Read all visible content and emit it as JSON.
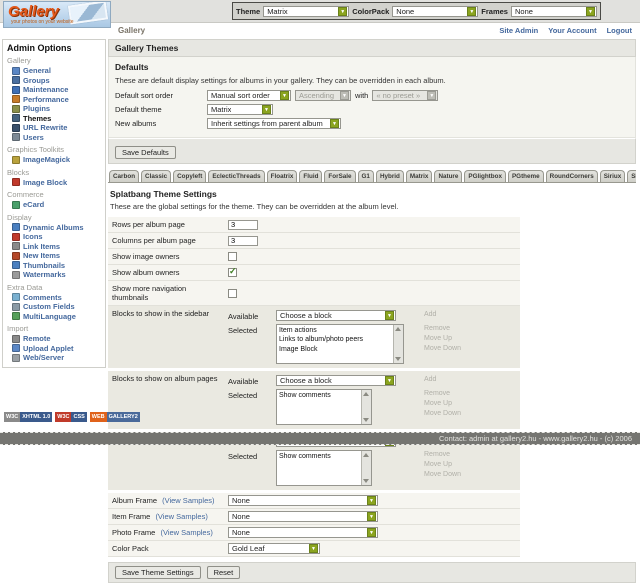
{
  "header": {
    "logo": {
      "title": "Gallery",
      "subtitle": "your photos on your website"
    },
    "theme_bar": {
      "theme_label": "Theme",
      "theme_value": "Matrix",
      "colorpack_label": "ColorPack",
      "colorpack_value": "None",
      "frames_label": "Frames",
      "frames_value": "None"
    },
    "breadcrumb": "Gallery",
    "links": [
      "Site Admin",
      "Your Account",
      "Logout"
    ]
  },
  "sidebar": {
    "title": "Admin Options",
    "sections": [
      {
        "label": "Gallery",
        "items": [
          {
            "label": "General",
            "icon": "general-icon",
            "color": "#5b87c5"
          },
          {
            "label": "Groups",
            "icon": "groups-icon",
            "color": "#4a6fa0"
          },
          {
            "label": "Maintenance",
            "icon": "maintenance-icon",
            "color": "#3f6fb5"
          },
          {
            "label": "Performance",
            "icon": "performance-icon",
            "color": "#c77b2a"
          },
          {
            "label": "Plugins",
            "icon": "plugins-icon",
            "color": "#8a8f4a"
          },
          {
            "label": "Themes",
            "icon": "themes-icon",
            "color": "#44627e",
            "active": true
          },
          {
            "label": "URL Rewrite",
            "icon": "url-rewrite-icon",
            "color": "#39506b"
          },
          {
            "label": "Users",
            "icon": "users-icon",
            "color": "#7d8a96"
          }
        ]
      },
      {
        "label": "Graphics Toolkits",
        "items": [
          {
            "label": "ImageMagick",
            "icon": "imagemagick-icon",
            "color": "#b9a23c"
          }
        ]
      },
      {
        "label": "Blocks",
        "items": [
          {
            "label": "Image Block",
            "icon": "image-block-icon",
            "color": "#c0392b"
          }
        ]
      },
      {
        "label": "Commerce",
        "items": [
          {
            "label": "eCard",
            "icon": "ecard-icon",
            "color": "#4aa06b"
          }
        ]
      },
      {
        "label": "Display",
        "items": [
          {
            "label": "Dynamic Albums",
            "icon": "dynamic-albums-icon",
            "color": "#4a7fc0"
          },
          {
            "label": "Icons",
            "icon": "icons-icon",
            "color": "#c0392b"
          },
          {
            "label": "Link Items",
            "icon": "link-items-icon",
            "color": "#8a8a8a"
          },
          {
            "label": "New Items",
            "icon": "new-items-icon",
            "color": "#b5482a"
          },
          {
            "label": "Thumbnails",
            "icon": "thumbnails-icon",
            "color": "#4a7fc0"
          },
          {
            "label": "Watermarks",
            "icon": "watermarks-icon",
            "color": "#9a9a9a"
          }
        ]
      },
      {
        "label": "Extra Data",
        "items": [
          {
            "label": "Comments",
            "icon": "comments-icon",
            "color": "#7ab0d0"
          },
          {
            "label": "Custom Fields",
            "icon": "custom-fields-icon",
            "color": "#8a9aa5"
          },
          {
            "label": "MultiLanguage",
            "icon": "multilanguage-icon",
            "color": "#56a05a"
          }
        ]
      },
      {
        "label": "Import",
        "items": [
          {
            "label": "Remote",
            "icon": "remote-icon",
            "color": "#8a8a8a"
          },
          {
            "label": "Upload Applet",
            "icon": "upload-applet-icon",
            "color": "#5b87c5"
          },
          {
            "label": "Web/Server",
            "icon": "web-server-icon",
            "color": "#9aa0a5"
          }
        ]
      }
    ]
  },
  "main": {
    "page_title": "Gallery Themes",
    "defaults": {
      "title": "Defaults",
      "description": "These are default display settings for albums in your gallery. They can be overridden in each album.",
      "sort_label": "Default sort order",
      "sort_value": "Manual sort order",
      "direction_value": "Ascending",
      "with_text": "with",
      "preset_value": "« no preset »",
      "theme_label": "Default theme",
      "theme_value": "Matrix",
      "new_albums_label": "New albums",
      "new_albums_value": "Inherit settings from parent album",
      "save_button": "Save Defaults"
    },
    "tabs": [
      {
        "label": "Carbon"
      },
      {
        "label": "Classic"
      },
      {
        "label": "Copyleft"
      },
      {
        "label": "EclecticThreads"
      },
      {
        "label": "Floatrix"
      },
      {
        "label": "Fluid"
      },
      {
        "label": "ForSale"
      },
      {
        "label": "G1"
      },
      {
        "label": "Hybrid"
      },
      {
        "label": "Matrix"
      },
      {
        "label": "Nature"
      },
      {
        "label": "PGlightbox"
      },
      {
        "label": "PGtheme"
      },
      {
        "label": "RoundCorners"
      },
      {
        "label": "Siriux"
      },
      {
        "label": "Slider"
      },
      {
        "label": "SplatBang",
        "active": true
      },
      {
        "label": "Tian"
      },
      {
        "label": "Tile"
      },
      {
        "label": "WordpressEmbedded"
      }
    ],
    "theme_settings": {
      "title": "Splatbang Theme Settings",
      "description": "These are the global settings for the theme. They can be overridden at the album level.",
      "rows_label": "Rows per album page",
      "rows_value": "3",
      "columns_label": "Columns per album page",
      "columns_value": "3",
      "show_image_owners_label": "Show image owners",
      "show_image_owners_checked": false,
      "show_album_owners_label": "Show album owners",
      "show_album_owners_checked": true,
      "show_more_nav_label": "Show more navigation thumbnails",
      "show_more_nav_checked": false,
      "available_label": "Available",
      "selected_label": "Selected",
      "choose_block": "Choose a block",
      "add_label": "Add",
      "remove_label": "Remove",
      "move_up_label": "Move Up",
      "move_down_label": "Move Down",
      "blocks": [
        {
          "label": "Blocks to show in the sidebar",
          "selected": [
            "Item actions",
            "Links to album/photo peers",
            "Image Block"
          ]
        },
        {
          "label": "Blocks to show on album pages",
          "selected": [
            "Show comments"
          ]
        },
        {
          "label": "Blocks to show on photo pages",
          "selected": [
            "Show comments"
          ]
        }
      ],
      "frames": [
        {
          "label": "Album Frame",
          "samples_link": "(View Samples)",
          "value": "None"
        },
        {
          "label": "Item Frame",
          "samples_link": "(View Samples)",
          "value": "None"
        },
        {
          "label": "Photo Frame",
          "samples_link": "(View Samples)",
          "value": "None"
        }
      ],
      "colorpack_label": "Color Pack",
      "colorpack_value": "Gold Leaf",
      "save_button": "Save Theme Settings",
      "reset_button": "Reset"
    }
  },
  "badges": [
    {
      "left": "W3C",
      "right": "XHTML 1.0"
    },
    {
      "left": "W3C",
      "right": "CSS"
    },
    {
      "left": "WEB",
      "right": "GALLERY2"
    }
  ],
  "footer": {
    "contact": "Contact: admin at gallery2.hu - www.gallery2.hu - (c) 2006"
  },
  "colors": {
    "accent_green": "#8ba41f",
    "link_blue": "#44689d",
    "panel_bg": "#f5f5f0"
  }
}
